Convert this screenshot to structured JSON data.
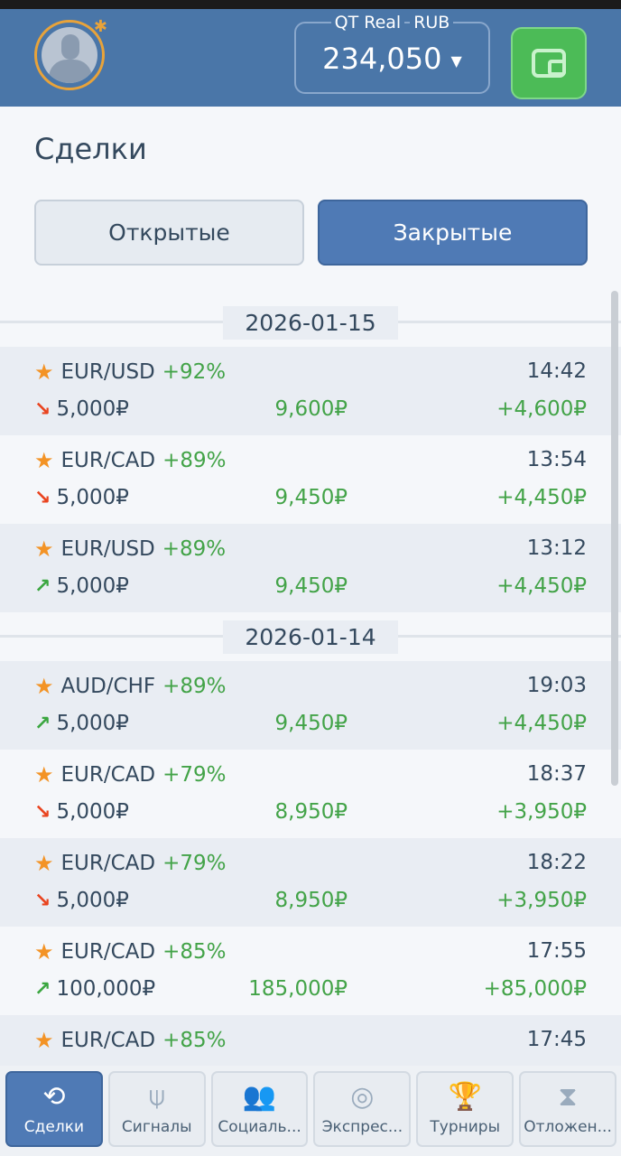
{
  "header": {
    "account_type": "QT Real",
    "currency": "RUB",
    "balance": "234,050",
    "avatar_icon": "user-avatar-icon",
    "wallet_icon": "wallet-icon"
  },
  "page": {
    "title": "Сделки"
  },
  "tabs": [
    {
      "label": "Открытые",
      "active": false
    },
    {
      "label": "Закрытые",
      "active": true
    }
  ],
  "colors": {
    "header": "#4a76a8",
    "accent": "#4f7ab5",
    "profit": "#43a348",
    "down": "#e9431e",
    "up": "#3aa63f",
    "star": "#f39325",
    "wallet": "#4cbb57"
  },
  "groups": [
    {
      "date": "2026-01-15",
      "trades": [
        {
          "pair": "EUR/USD",
          "percent": "+92%",
          "time": "14:42",
          "direction": "down",
          "amount": "5,000₽",
          "payout": "9,600₽",
          "profit": "+4,600₽"
        },
        {
          "pair": "EUR/CAD",
          "percent": "+89%",
          "time": "13:54",
          "direction": "down",
          "amount": "5,000₽",
          "payout": "9,450₽",
          "profit": "+4,450₽"
        },
        {
          "pair": "EUR/USD",
          "percent": "+89%",
          "time": "13:12",
          "direction": "up",
          "amount": "5,000₽",
          "payout": "9,450₽",
          "profit": "+4,450₽"
        }
      ]
    },
    {
      "date": "2026-01-14",
      "trades": [
        {
          "pair": "AUD/CHF",
          "percent": "+89%",
          "time": "19:03",
          "direction": "up",
          "amount": "5,000₽",
          "payout": "9,450₽",
          "profit": "+4,450₽"
        },
        {
          "pair": "EUR/CAD",
          "percent": "+79%",
          "time": "18:37",
          "direction": "down",
          "amount": "5,000₽",
          "payout": "8,950₽",
          "profit": "+3,950₽"
        },
        {
          "pair": "EUR/CAD",
          "percent": "+79%",
          "time": "18:22",
          "direction": "down",
          "amount": "5,000₽",
          "payout": "8,950₽",
          "profit": "+3,950₽"
        },
        {
          "pair": "EUR/CAD",
          "percent": "+85%",
          "time": "17:55",
          "direction": "up",
          "amount": "100,000₽",
          "payout": "185,000₽",
          "profit": "+85,000₽"
        },
        {
          "pair": "EUR/CAD",
          "percent": "+85%",
          "time": "17:45",
          "direction": "",
          "amount": "",
          "payout": "",
          "profit": ""
        }
      ]
    }
  ],
  "nav": [
    {
      "label": "Сделки",
      "icon": "history-icon",
      "glyph": "⟲",
      "active": true
    },
    {
      "label": "Сигналы",
      "icon": "antenna-icon",
      "glyph": "⍦",
      "active": false
    },
    {
      "label": "Социаль...",
      "icon": "users-icon",
      "glyph": "👥",
      "active": false
    },
    {
      "label": "Экспрес...",
      "icon": "target-icon",
      "glyph": "◎",
      "active": false
    },
    {
      "label": "Турниры",
      "icon": "trophy-icon",
      "glyph": "🏆",
      "active": false
    },
    {
      "label": "Отложен...",
      "icon": "hourglass-icon",
      "glyph": "⧗",
      "active": false
    }
  ]
}
